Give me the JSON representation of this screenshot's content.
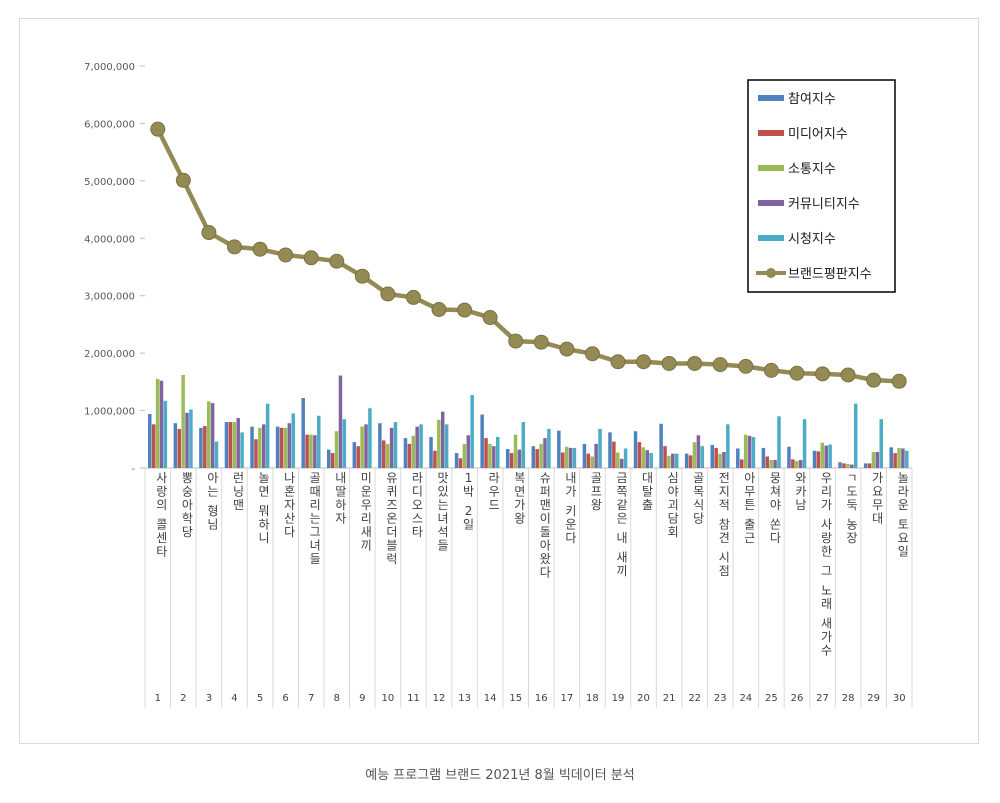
{
  "caption": "예능 프로그램 브랜드 2021년 8월 빅데이터 분석",
  "chart_data": {
    "type": "bar",
    "ylim": [
      0,
      7000000
    ],
    "yticks": [
      "-",
      "1,000,000",
      "2,000,000",
      "3,000,000",
      "4,000,000",
      "5,000,000",
      "6,000,000",
      "7,000,000"
    ],
    "legend_position": "top-right",
    "grid": false,
    "numbers": [
      "1",
      "2",
      "3",
      "4",
      "5",
      "6",
      "7",
      "8",
      "9",
      "10",
      "11",
      "12",
      "13",
      "14",
      "15",
      "16",
      "17",
      "18",
      "19",
      "20",
      "21",
      "22",
      "23",
      "24",
      "25",
      "26",
      "27",
      "28",
      "29",
      "30"
    ],
    "categories": [
      "사랑의 콜센타",
      "뽕숭아학당",
      "아는 형님",
      "런닝맨",
      "놀면 뭐하니",
      "나혼자산다",
      "골때리는그녀들",
      "내딸하자",
      "미운우리새끼",
      "유퀴즈온더블럭",
      "라디오스타",
      "맛있는녀석들",
      "1박 2일",
      "라우드",
      "복면가왕",
      "슈퍼맨이돌아왔다",
      "내가 키운다",
      "골프왕",
      "금쪽같은 내 새끼",
      "대탈출",
      "심야괴담회",
      "골목식당",
      "전지적 참견 시점",
      "아무튼 출근",
      "뭉쳐야 쏜다",
      "와카남",
      "우리가 사랑한 그 노래 새가수",
      "ㄱ도둑 농장",
      "가요무대",
      "놀라운 토요일"
    ],
    "series": [
      {
        "name": "참여지수",
        "color": "#4f81bd",
        "kind": "bar",
        "values": [
          940000,
          780000,
          700000,
          800000,
          720000,
          720000,
          1220000,
          320000,
          450000,
          780000,
          520000,
          540000,
          260000,
          930000,
          330000,
          380000,
          650000,
          420000,
          620000,
          640000,
          770000,
          250000,
          400000,
          340000,
          350000,
          370000,
          300000,
          100000,
          80000,
          360000
        ]
      },
      {
        "name": "미디어지수",
        "color": "#c0504d",
        "kind": "bar",
        "values": [
          760000,
          680000,
          730000,
          800000,
          500000,
          700000,
          580000,
          260000,
          380000,
          480000,
          420000,
          300000,
          170000,
          520000,
          260000,
          330000,
          270000,
          250000,
          460000,
          450000,
          380000,
          220000,
          350000,
          150000,
          200000,
          150000,
          290000,
          80000,
          80000,
          260000
        ]
      },
      {
        "name": "소통지수",
        "color": "#9bbb59",
        "kind": "bar",
        "values": [
          1550000,
          1620000,
          1160000,
          800000,
          700000,
          700000,
          580000,
          640000,
          720000,
          420000,
          560000,
          840000,
          420000,
          420000,
          580000,
          420000,
          370000,
          200000,
          270000,
          360000,
          210000,
          450000,
          250000,
          580000,
          140000,
          120000,
          440000,
          70000,
          280000,
          350000
        ]
      },
      {
        "name": "커뮤니티지수",
        "color": "#8064a2",
        "kind": "bar",
        "values": [
          1520000,
          960000,
          1130000,
          870000,
          760000,
          780000,
          570000,
          1610000,
          760000,
          700000,
          720000,
          980000,
          570000,
          380000,
          320000,
          520000,
          350000,
          420000,
          160000,
          310000,
          250000,
          570000,
          280000,
          560000,
          140000,
          140000,
          390000,
          60000,
          280000,
          340000
        ]
      },
      {
        "name": "시청지수",
        "color": "#4bacc6",
        "kind": "bar",
        "values": [
          1170000,
          1020000,
          460000,
          620000,
          1120000,
          950000,
          910000,
          850000,
          1040000,
          800000,
          760000,
          760000,
          1270000,
          540000,
          800000,
          680000,
          350000,
          680000,
          340000,
          260000,
          250000,
          380000,
          760000,
          540000,
          900000,
          850000,
          410000,
          1120000,
          850000,
          300000
        ]
      },
      {
        "name": "브랜드평판지수",
        "color": "#948a54",
        "kind": "line",
        "values": [
          5900000,
          5010000,
          4100000,
          3850000,
          3810000,
          3710000,
          3660000,
          3600000,
          3340000,
          3030000,
          2970000,
          2760000,
          2750000,
          2620000,
          2210000,
          2190000,
          2070000,
          1990000,
          1850000,
          1850000,
          1820000,
          1820000,
          1800000,
          1770000,
          1700000,
          1650000,
          1640000,
          1620000,
          1530000,
          1510000
        ]
      }
    ]
  }
}
